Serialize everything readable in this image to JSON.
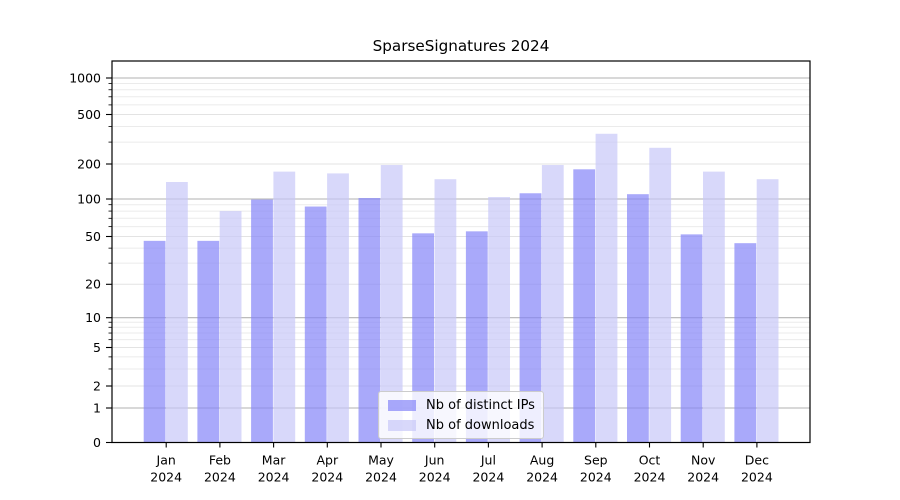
{
  "chart_data": {
    "type": "bar",
    "title": "SparseSignatures 2024",
    "categories": [
      "Jan 2024",
      "Feb 2024",
      "Mar 2024",
      "Apr 2024",
      "May 2024",
      "Jun 2024",
      "Jul 2024",
      "Aug 2024",
      "Sep 2024",
      "Oct 2024",
      "Nov 2024",
      "Dec 2024"
    ],
    "series": [
      {
        "name": "Nb of distinct IPs",
        "color": "#8484f8",
        "opacity": 0.7,
        "values": [
          46,
          46,
          99,
          87,
          102,
          53,
          55,
          112,
          180,
          110,
          52,
          44
        ]
      },
      {
        "name": "Nb of downloads",
        "color": "#c7c7f8",
        "opacity": 0.7,
        "values": [
          140,
          80,
          172,
          166,
          196,
          148,
          104,
          196,
          350,
          270,
          172,
          148
        ]
      }
    ],
    "y_axis": {
      "scale": "symlog",
      "ticks": [
        0,
        1,
        2,
        5,
        10,
        20,
        50,
        100,
        200,
        500,
        1000
      ],
      "tick_labels": [
        "0",
        "1",
        "2",
        "5",
        "10",
        "20",
        "50",
        "100",
        "200",
        "500",
        "1000"
      ]
    },
    "grid": {
      "which": "both",
      "major_color": "#b2b2b2",
      "mid_color": "#e3e3e3",
      "minor_color": "#ebebeb"
    },
    "legend": {
      "position": "lower center",
      "entries": [
        "Nb of distinct IPs",
        "Nb of downloads"
      ]
    },
    "colors": {
      "axis": "#000000",
      "text": "#000000",
      "background": "#ffffff"
    }
  }
}
